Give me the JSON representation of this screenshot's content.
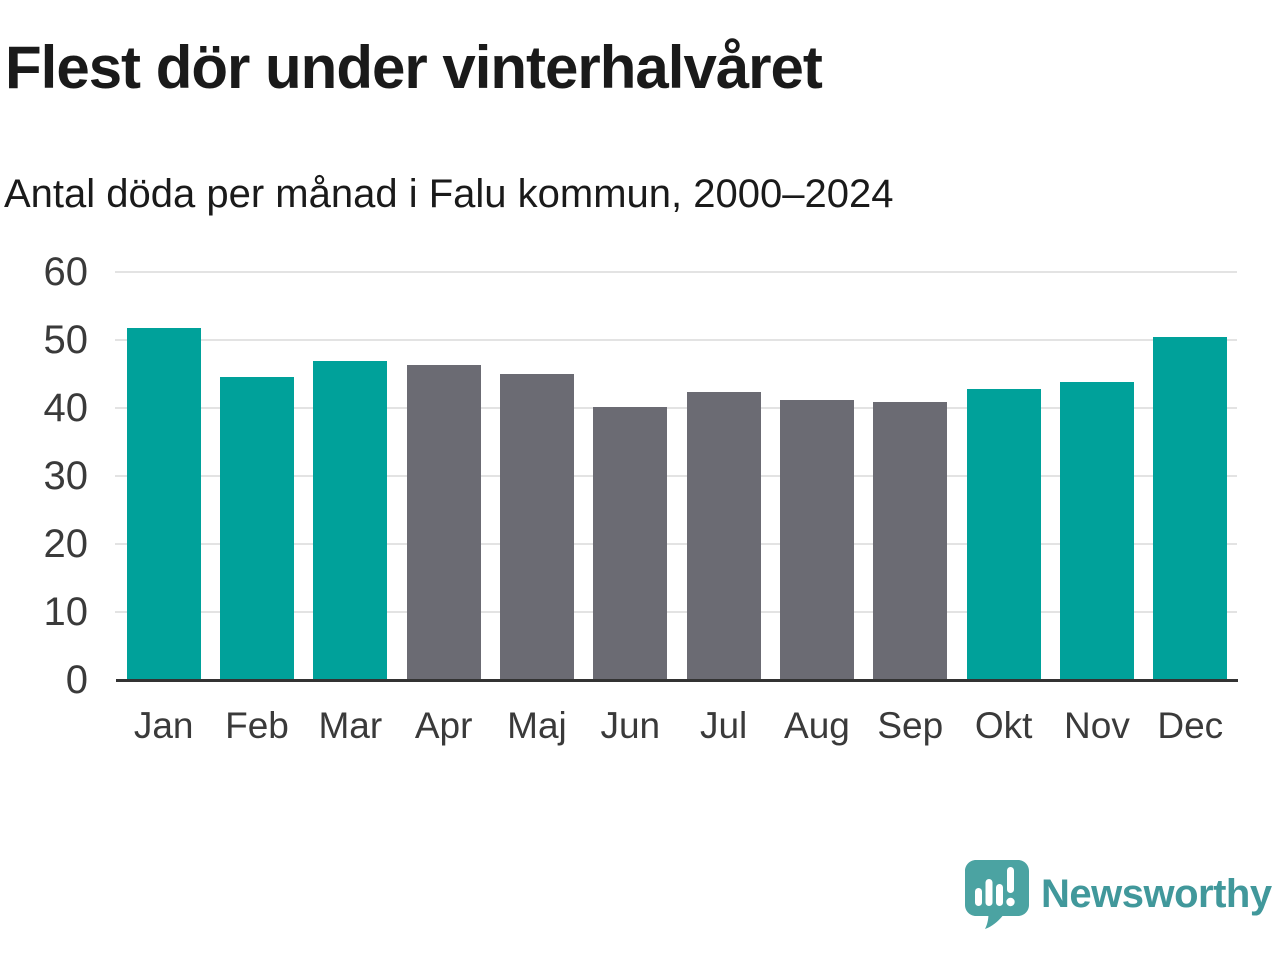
{
  "chart_data": {
    "type": "bar",
    "title": "Flest dör under vinterhalvåret",
    "subtitle": "Antal döda per månad i Falu kommun, 2000–2024",
    "categories": [
      "Jan",
      "Feb",
      "Mar",
      "Apr",
      "Maj",
      "Jun",
      "Jul",
      "Aug",
      "Sep",
      "Okt",
      "Nov",
      "Dec"
    ],
    "values": [
      51.8,
      44.6,
      46.9,
      46.4,
      45.0,
      40.2,
      42.3,
      41.2,
      40.9,
      42.8,
      43.8,
      50.4
    ],
    "bar_colors": [
      "teal",
      "teal",
      "teal",
      "gray",
      "gray",
      "gray",
      "gray",
      "gray",
      "gray",
      "teal",
      "teal",
      "teal"
    ],
    "xlabel": "",
    "ylabel": "",
    "ylim": [
      0,
      60
    ],
    "yticks": [
      0,
      10,
      20,
      30,
      40,
      50,
      60
    ],
    "grid": true,
    "legend": false
  },
  "logo": {
    "icon": "speech-bubble-bar-chart-icon",
    "text": "Newsworthy"
  },
  "colors": {
    "teal": "#00a19a",
    "gray": "#6b6b73",
    "grid": "#e3e3e3",
    "axis": "#333333",
    "title-text": "#1a1a1a",
    "label-text": "#3a3a3a",
    "logo-mark": "#4ba3a2",
    "logo-text": "#41989b"
  }
}
